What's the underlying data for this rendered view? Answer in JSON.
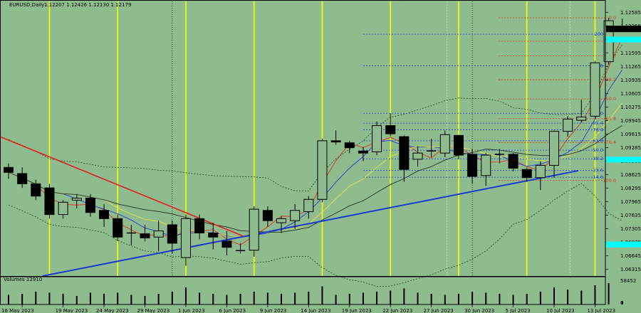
{
  "header": {
    "symbol": "EURUSD,Daily",
    "ohlc": "1.12207 1.12426 1.12130 1.12179"
  },
  "chart_data": {
    "type": "candlestick",
    "timeframe": "Daily",
    "ylim": [
      1.0615,
      1.1285
    ],
    "price_ticks": [
      "1.12585",
      "1.12255",
      "1.11925",
      "1.11595",
      "1.11265",
      "1.10935",
      "1.10605",
      "1.10275",
      "1.09945",
      "1.09615",
      "1.09285",
      "1.08955",
      "1.08625",
      "1.08295",
      "1.07965",
      "1.07635",
      "1.07305",
      "1.06975",
      "1.06645",
      "1.06315"
    ],
    "date_labels": [
      "16 May 2023",
      "19 May 2023",
      "24 May 2023",
      "29 May 2023",
      "1 Jun 2023",
      "6 Jun 2023",
      "9 Jun 2023",
      "14 Jun 2023",
      "19 Jun 2023",
      "22 Jun 2023",
      "27 Jun 2023",
      "30 Jun 2023",
      "5 Jul 2023",
      "10 Jul 2023",
      "13 Jul 2023"
    ],
    "current_price": "1.12179",
    "candles": [
      {
        "o": 1.088,
        "h": 1.089,
        "l": 1.0852,
        "c": 1.0868
      },
      {
        "o": 1.0865,
        "h": 1.088,
        "l": 1.083,
        "c": 1.084
      },
      {
        "o": 1.084,
        "h": 1.085,
        "l": 1.08,
        "c": 1.081
      },
      {
        "o": 1.083,
        "h": 1.084,
        "l": 1.0755,
        "c": 1.0765
      },
      {
        "o": 1.0765,
        "h": 1.08,
        "l": 1.0755,
        "c": 1.0795
      },
      {
        "o": 1.08,
        "h": 1.0815,
        "l": 1.078,
        "c": 1.0805
      },
      {
        "o": 1.0805,
        "h": 1.0815,
        "l": 1.076,
        "c": 1.077
      },
      {
        "o": 1.0775,
        "h": 1.079,
        "l": 1.0735,
        "c": 1.0755
      },
      {
        "o": 1.0755,
        "h": 1.0765,
        "l": 1.07,
        "c": 1.071
      },
      {
        "o": 1.072,
        "h": 1.074,
        "l": 1.069,
        "c": 1.0718
      },
      {
        "o": 1.0718,
        "h": 1.074,
        "l": 1.07,
        "c": 1.0708
      },
      {
        "o": 1.071,
        "h": 1.075,
        "l": 1.0675,
        "c": 1.0725
      },
      {
        "o": 1.074,
        "h": 1.075,
        "l": 1.067,
        "c": 1.0695
      },
      {
        "o": 1.066,
        "h": 1.0765,
        "l": 1.064,
        "c": 1.0755
      },
      {
        "o": 1.0755,
        "h": 1.0765,
        "l": 1.0705,
        "c": 1.072
      },
      {
        "o": 1.072,
        "h": 1.0745,
        "l": 1.068,
        "c": 1.071
      },
      {
        "o": 1.07,
        "h": 1.0725,
        "l": 1.0665,
        "c": 1.0685
      },
      {
        "o": 1.0675,
        "h": 1.0695,
        "l": 1.067,
        "c": 1.0677
      },
      {
        "o": 1.0678,
        "h": 1.0785,
        "l": 1.0662,
        "c": 1.0778
      },
      {
        "o": 1.0775,
        "h": 1.0785,
        "l": 1.0735,
        "c": 1.075
      },
      {
        "o": 1.0745,
        "h": 1.076,
        "l": 1.072,
        "c": 1.0755
      },
      {
        "o": 1.075,
        "h": 1.079,
        "l": 1.073,
        "c": 1.0775
      },
      {
        "o": 1.0772,
        "h": 1.081,
        "l": 1.0755,
        "c": 1.0802
      },
      {
        "o": 1.0802,
        "h": 1.095,
        "l": 1.0795,
        "c": 1.0945
      },
      {
        "o": 1.0945,
        "h": 1.097,
        "l": 1.0935,
        "c": 1.0942
      },
      {
        "o": 1.094,
        "h": 1.0945,
        "l": 1.0915,
        "c": 1.0928
      },
      {
        "o": 1.092,
        "h": 1.093,
        "l": 1.0895,
        "c": 1.0915
      },
      {
        "o": 1.0918,
        "h": 1.0992,
        "l": 1.091,
        "c": 1.0982
      },
      {
        "o": 1.0982,
        "h": 1.1012,
        "l": 1.0955,
        "c": 1.0962
      },
      {
        "o": 1.0955,
        "h": 1.0958,
        "l": 1.0845,
        "c": 1.0875
      },
      {
        "o": 1.09,
        "h": 1.0932,
        "l": 1.0882,
        "c": 1.0915
      },
      {
        "o": 1.092,
        "h": 1.095,
        "l": 1.0905,
        "c": 1.0918
      },
      {
        "o": 1.0915,
        "h": 1.097,
        "l": 1.0905,
        "c": 1.096
      },
      {
        "o": 1.0958,
        "h": 1.096,
        "l": 1.09,
        "c": 1.091
      },
      {
        "o": 1.0912,
        "h": 1.0925,
        "l": 1.084,
        "c": 1.0858
      },
      {
        "o": 1.086,
        "h": 1.0915,
        "l": 1.0835,
        "c": 1.091
      },
      {
        "o": 1.091,
        "h": 1.0925,
        "l": 1.089,
        "c": 1.0912
      },
      {
        "o": 1.0912,
        "h": 1.0915,
        "l": 1.087,
        "c": 1.0878
      },
      {
        "o": 1.0875,
        "h": 1.088,
        "l": 1.0845,
        "c": 1.0855
      },
      {
        "o": 1.0855,
        "h": 1.0895,
        "l": 1.0825,
        "c": 1.0885
      },
      {
        "o": 1.0885,
        "h": 1.097,
        "l": 1.0855,
        "c": 1.0968
      },
      {
        "o": 1.0968,
        "h": 1.1005,
        "l": 1.0955,
        "c": 1.0998
      },
      {
        "o": 1.0995,
        "h": 1.1045,
        "l": 1.099,
        "c": 1.1003
      },
      {
        "o": 1.1005,
        "h": 1.114,
        "l": 1.0998,
        "c": 1.1135
      },
      {
        "o": 1.1138,
        "h": 1.1245,
        "l": 1.113,
        "c": 1.1238
      },
      {
        "o": 1.1221,
        "h": 1.1243,
        "l": 1.1213,
        "c": 1.1218
      }
    ],
    "fib_levels": [
      {
        "label": "0.0",
        "value": 1.1245,
        "color": "#d04020"
      },
      {
        "label": "14.6",
        "value": 1.1188,
        "color": "#d04020"
      },
      {
        "label": "23.6",
        "value": 1.1152,
        "color": "#d04020"
      },
      {
        "label": "38.2",
        "value": 1.1094,
        "color": "#d04020"
      },
      {
        "label": "50.0",
        "value": 1.1047,
        "color": "#d04020"
      },
      {
        "label": "61.8",
        "value": 1.0999,
        "color": "#d04020"
      },
      {
        "label": "76.4",
        "value": 1.0941,
        "color": "#d04020"
      },
      {
        "label": "100.0",
        "value": 1.0848,
        "color": "#d04020"
      },
      {
        "label": "200",
        "value": 1.1205,
        "color": "#2040d0"
      },
      {
        "label": "161.8",
        "value": 1.1128,
        "color": "#2040d0"
      },
      {
        "label": "100.0",
        "value": 1.1012,
        "color": "#2040d0"
      },
      {
        "label": "85.4",
        "value": 1.0988,
        "color": "#2040d0"
      },
      {
        "label": "76.4",
        "value": 1.0972,
        "color": "#2040d0"
      },
      {
        "label": "61.8",
        "value": 1.0945,
        "color": "#2040d0"
      },
      {
        "label": "50.0",
        "value": 1.0922,
        "color": "#2040d0"
      },
      {
        "label": "38.2",
        "value": 1.0901,
        "color": "#2040d0"
      },
      {
        "label": "23.6",
        "value": 1.0873,
        "color": "#2040d0"
      },
      {
        "label": "14.6",
        "value": 1.0856,
        "color": "#2040d0"
      }
    ],
    "volume_label": "Volumes 12910",
    "volume_ticks": [
      "58452",
      "0"
    ],
    "volumes": [
      0.45,
      0.5,
      0.6,
      0.55,
      0.5,
      0.4,
      0.55,
      0.5,
      0.55,
      0.45,
      0.4,
      0.5,
      0.6,
      0.8,
      0.55,
      0.5,
      0.45,
      0.5,
      0.6,
      0.55,
      0.5,
      0.55,
      0.6,
      0.85,
      0.45,
      0.5,
      0.55,
      0.6,
      0.65,
      0.75,
      0.55,
      0.5,
      0.45,
      0.5,
      0.6,
      0.55,
      0.5,
      0.45,
      0.5,
      0.6,
      0.8,
      0.7,
      0.65,
      0.9,
      1.0,
      0.15
    ]
  },
  "colors": {
    "background": "#8fbc8f",
    "up_candle": "#8fbc8f",
    "down_candle": "#000000",
    "vertical_markers": "#ffff00",
    "trend_up": "#1a3acc",
    "trend_down": "#e02020",
    "cyan_marker": "#00ffff"
  }
}
